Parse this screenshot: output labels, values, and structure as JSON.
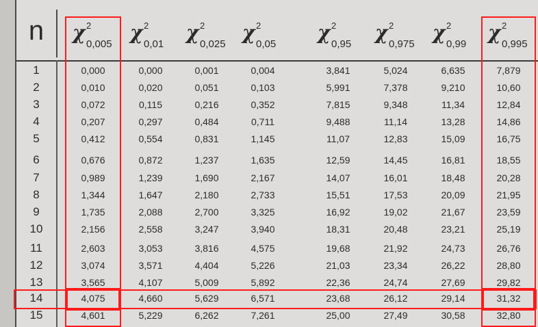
{
  "table": {
    "n_header": "n",
    "columns": [
      {
        "symbol": "χ",
        "sup": "2",
        "sub": "0,005"
      },
      {
        "symbol": "χ",
        "sup": "2",
        "sub": "0,01"
      },
      {
        "symbol": "χ",
        "sup": "2",
        "sub": "0,025"
      },
      {
        "symbol": "χ",
        "sup": "2",
        "sub": "0,05"
      },
      {
        "symbol": "χ",
        "sup": "2",
        "sub": "0,95"
      },
      {
        "symbol": "χ",
        "sup": "2",
        "sub": "0,975"
      },
      {
        "symbol": "χ",
        "sup": "2",
        "sub": "0,99"
      },
      {
        "symbol": "χ",
        "sup": "2",
        "sub": "0,995"
      }
    ],
    "rows": [
      {
        "n": "1",
        "values": [
          "0,000",
          "0,000",
          "0,001",
          "0,004",
          "3,841",
          "5,024",
          "6,635",
          "7,879"
        ]
      },
      {
        "n": "2",
        "values": [
          "0,010",
          "0,020",
          "0,051",
          "0,103",
          "5,991",
          "7,378",
          "9,210",
          "10,60"
        ]
      },
      {
        "n": "3",
        "values": [
          "0,072",
          "0,115",
          "0,216",
          "0,352",
          "7,815",
          "9,348",
          "11,34",
          "12,84"
        ]
      },
      {
        "n": "4",
        "values": [
          "0,207",
          "0,297",
          "0,484",
          "0,711",
          "9,488",
          "11,14",
          "13,28",
          "14,86"
        ]
      },
      {
        "n": "5",
        "values": [
          "0,412",
          "0,554",
          "0,831",
          "1,145",
          "11,07",
          "12,83",
          "15,09",
          "16,75"
        ]
      },
      {
        "n": "6",
        "values": [
          "0,676",
          "0,872",
          "1,237",
          "1,635",
          "12,59",
          "14,45",
          "16,81",
          "18,55"
        ]
      },
      {
        "n": "7",
        "values": [
          "0,989",
          "1,239",
          "1,690",
          "2,167",
          "14,07",
          "16,01",
          "18,48",
          "20,28"
        ]
      },
      {
        "n": "8",
        "values": [
          "1,344",
          "1,647",
          "2,180",
          "2,733",
          "15,51",
          "17,53",
          "20,09",
          "21,95"
        ]
      },
      {
        "n": "9",
        "values": [
          "1,735",
          "2,088",
          "2,700",
          "3,325",
          "16,92",
          "19,02",
          "21,67",
          "23,59"
        ]
      },
      {
        "n": "10",
        "values": [
          "2,156",
          "2,558",
          "3,247",
          "3,940",
          "18,31",
          "20,48",
          "23,21",
          "25,19"
        ]
      },
      {
        "n": "11",
        "values": [
          "2,603",
          "3,053",
          "3,816",
          "4,575",
          "19,68",
          "21,92",
          "24,73",
          "26,76"
        ]
      },
      {
        "n": "12",
        "values": [
          "3,074",
          "3,571",
          "4,404",
          "5,226",
          "21,03",
          "23,34",
          "26,22",
          "28,80"
        ]
      },
      {
        "n": "13",
        "values": [
          "3,565",
          "4,107",
          "5,009",
          "5,892",
          "22,36",
          "24,74",
          "27,69",
          "29,82"
        ]
      },
      {
        "n": "14",
        "values": [
          "4,075",
          "4,660",
          "5,629",
          "6,571",
          "23,68",
          "26,12",
          "29,14",
          "31,32"
        ]
      },
      {
        "n": "15",
        "values": [
          "4,601",
          "5,229",
          "6,262",
          "7,261",
          "25,00",
          "27,49",
          "30,58",
          "32,80"
        ]
      }
    ]
  },
  "highlight_color": "#ff1a1a"
}
